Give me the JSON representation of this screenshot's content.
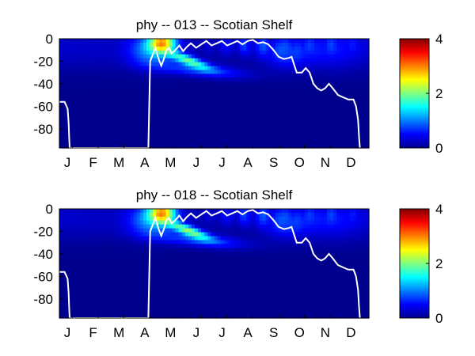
{
  "colormap": [
    "#00008f",
    "#0000ff",
    "#0080ff",
    "#00ffff",
    "#80ff80",
    "#ffff00",
    "#ff8000",
    "#ff0000",
    "#800000"
  ],
  "chart_data": [
    {
      "type": "heatmap",
      "title": "phy -- 013 -- Scotian Shelf",
      "x_tick_labels": [
        "J",
        "F",
        "M",
        "A",
        "M",
        "J",
        "J",
        "A",
        "S",
        "O",
        "N",
        "D"
      ],
      "y_ticks": [
        0,
        -20,
        -40,
        -60,
        -80
      ],
      "ylim": [
        -97,
        0
      ],
      "colorbar": {
        "ticks": [
          0,
          2,
          4
        ],
        "range": [
          0,
          4
        ]
      },
      "white_line": {
        "x_month": [
          0.0,
          0.2,
          0.32,
          0.36,
          0.38,
          0.4,
          3.45,
          3.52,
          3.62,
          3.72,
          3.85,
          3.95,
          4.05,
          4.15,
          4.25,
          4.35,
          4.5,
          4.65,
          4.8,
          4.95,
          5.1,
          5.3,
          5.5,
          5.7,
          5.9,
          6.1,
          6.3,
          6.5,
          6.7,
          6.9,
          7.1,
          7.3,
          7.5,
          7.7,
          7.9,
          8.1,
          8.3,
          8.5,
          8.7,
          8.9,
          9.0,
          9.2,
          9.4,
          9.55,
          9.7,
          9.85,
          10.0,
          10.15,
          10.3,
          10.45,
          10.6,
          10.8,
          11.0,
          11.2,
          11.4,
          11.5,
          11.58,
          11.62,
          11.65
        ],
        "depth": [
          -56,
          -56,
          -62,
          -75,
          -88,
          -97,
          -97,
          -20,
          -14,
          -8,
          -18,
          -24,
          -18,
          -10,
          -8,
          -13,
          -10,
          -6,
          -11,
          -7,
          -4,
          -8,
          -5,
          -2,
          -6,
          -4,
          -2,
          -6,
          -4,
          -2,
          -5,
          -2,
          -1,
          -4,
          -3,
          -5,
          -10,
          -16,
          -18,
          -17,
          -16,
          -30,
          -30,
          -26,
          -30,
          -40,
          -44,
          -46,
          -44,
          -40,
          -44,
          -50,
          -52,
          -54,
          -54,
          -60,
          -72,
          -88,
          -97
        ]
      }
    },
    {
      "type": "heatmap",
      "title": "phy -- 018 -- Scotian Shelf",
      "x_tick_labels": [
        "J",
        "F",
        "M",
        "A",
        "M",
        "J",
        "J",
        "A",
        "S",
        "O",
        "N",
        "D"
      ],
      "y_ticks": [
        0,
        -20,
        -40,
        -60,
        -80
      ],
      "ylim": [
        -97,
        0
      ],
      "colorbar": {
        "ticks": [
          0,
          2,
          4
        ],
        "range": [
          0,
          4
        ]
      },
      "white_line": {
        "x_month": [
          0.0,
          0.2,
          0.32,
          0.36,
          0.38,
          0.4,
          3.45,
          3.52,
          3.62,
          3.72,
          3.85,
          3.95,
          4.05,
          4.15,
          4.25,
          4.35,
          4.5,
          4.65,
          4.8,
          4.95,
          5.1,
          5.3,
          5.5,
          5.7,
          5.9,
          6.1,
          6.3,
          6.5,
          6.7,
          6.9,
          7.1,
          7.3,
          7.5,
          7.7,
          7.9,
          8.1,
          8.3,
          8.5,
          8.7,
          8.9,
          9.0,
          9.2,
          9.4,
          9.55,
          9.7,
          9.85,
          10.0,
          10.15,
          10.3,
          10.45,
          10.6,
          10.8,
          11.0,
          11.2,
          11.4,
          11.5,
          11.58,
          11.62,
          11.65
        ],
        "depth": [
          -56,
          -56,
          -62,
          -75,
          -88,
          -97,
          -97,
          -20,
          -14,
          -8,
          -18,
          -24,
          -18,
          -10,
          -8,
          -13,
          -10,
          -6,
          -11,
          -7,
          -4,
          -8,
          -5,
          -2,
          -6,
          -4,
          -2,
          -6,
          -4,
          -2,
          -5,
          -2,
          -1,
          -4,
          -3,
          -5,
          -10,
          -16,
          -18,
          -17,
          -16,
          -30,
          -30,
          -26,
          -30,
          -40,
          -44,
          -46,
          -44,
          -40,
          -44,
          -50,
          -52,
          -54,
          -54,
          -60,
          -72,
          -88,
          -97
        ]
      }
    }
  ]
}
